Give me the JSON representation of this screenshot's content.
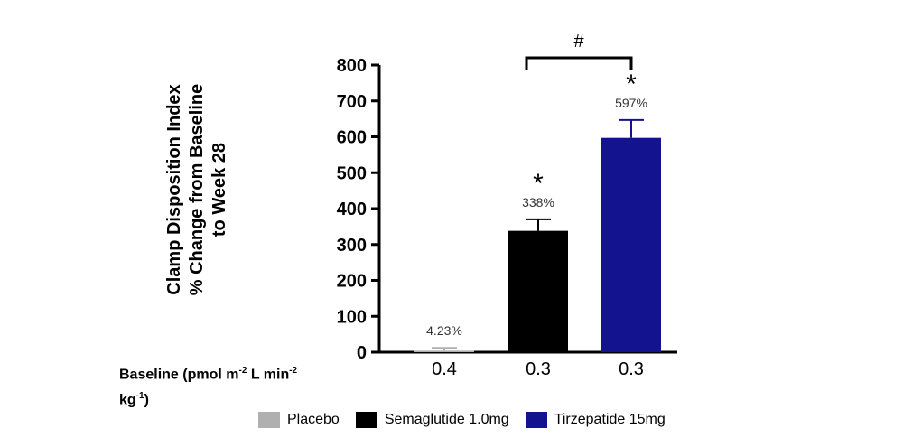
{
  "chart_data": {
    "type": "bar",
    "categories": [
      "Placebo",
      "Semaglutide 1.0mg",
      "Tirzepatide 15mg"
    ],
    "values": [
      4.23,
      338,
      597
    ],
    "error_upper": [
      12,
      370,
      647
    ],
    "data_labels": [
      "4.23%",
      "338%",
      "597%"
    ],
    "significance": [
      "",
      "*",
      "*"
    ],
    "bracket": {
      "from": 1,
      "to": 2,
      "label": "#"
    },
    "colors": [
      "#b0b0b0",
      "#000000",
      "#131390"
    ],
    "ylabel_lines": [
      "Clamp Disposition Index",
      "% Change from Baseline",
      "to Week 28"
    ],
    "ylim": [
      0,
      800
    ],
    "yticks": [
      0,
      100,
      200,
      300,
      400,
      500,
      600,
      700,
      800
    ],
    "baseline_values": [
      "0.4",
      "0.3",
      "0.3"
    ],
    "baseline_label": {
      "main": "Baseline (pmol m",
      "sup1": "-2",
      "mid": " L min",
      "sup2": "-2",
      "line2": "kg",
      "sup3": "-1",
      "end": ")"
    },
    "legend": [
      "Placebo",
      "Semaglutide 1.0mg",
      "Tirzepatide 15mg"
    ]
  }
}
